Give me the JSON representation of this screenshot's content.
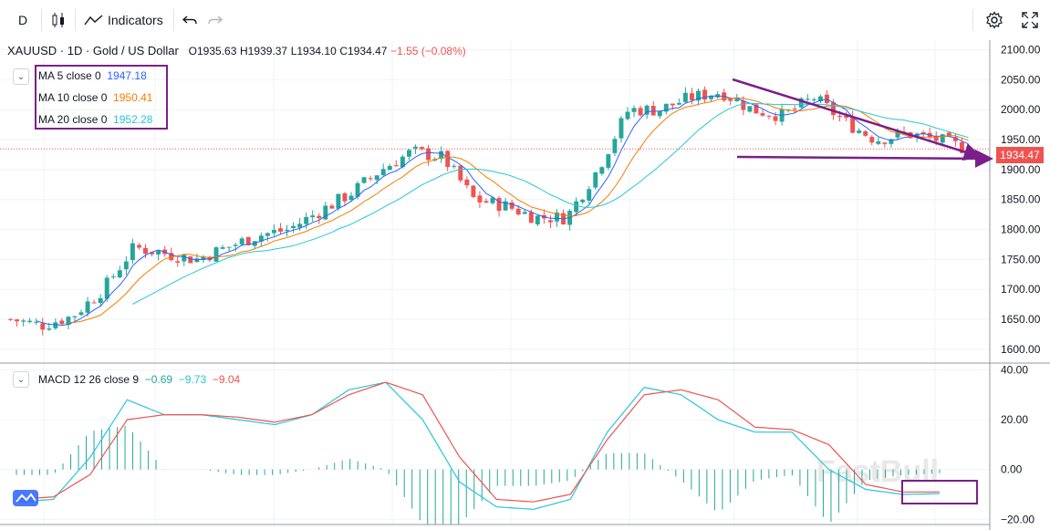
{
  "toolbar": {
    "interval": "D",
    "indicators_label": "Indicators",
    "undo_icon": "undo-icon",
    "redo_icon": "redo-icon",
    "settings_icon": "gear-icon",
    "fullscreen_icon": "fullscreen-icon"
  },
  "legend": {
    "symbol": "XAUUSD · 1D · Gold / US Dollar",
    "open": "O1935.63",
    "high": "H1939.37",
    "low": "L1934.10",
    "close": "C1934.47",
    "change": "−1.55 (−0.08%)"
  },
  "ma": [
    {
      "label": "MA 5 close 0",
      "value": "1947.18",
      "color": "#2962ff"
    },
    {
      "label": "MA 10 close 0",
      "value": "1950.41",
      "color": "#f57c00"
    },
    {
      "label": "MA 20 close 0",
      "value": "1952.28",
      "color": "#26c6da"
    }
  ],
  "macd": {
    "label": "MACD 12 26 close 9",
    "hist": "−0.69",
    "macd": "−9.73",
    "signal": "−9.04"
  },
  "last_price": "1934.47",
  "colors": {
    "up": "#26a69a",
    "down": "#ef5350",
    "annotation": "#7b1f8a"
  },
  "price_axis": [
    "2100.00",
    "2050.00",
    "2000.00",
    "1950.00",
    "1900.00",
    "1850.00",
    "1800.00",
    "1750.00",
    "1700.00",
    "1650.00",
    "1600.00"
  ],
  "macd_axis": [
    "40.00",
    "20.00",
    "0.00",
    "−20.00"
  ],
  "watermark": "FastBull",
  "chart_data": {
    "type": "candlestick",
    "y_range": [
      1580,
      2110
    ],
    "macd_range": [
      -21,
      42
    ],
    "price_trend": [
      1650,
      1640,
      1655,
      1700,
      1770,
      1760,
      1750,
      1770,
      1790,
      1800,
      1830,
      1860,
      1900,
      1930,
      1920,
      1850,
      1840,
      1820,
      1820,
      1900,
      2000,
      2000,
      2020,
      2030,
      2000,
      1990,
      2020,
      1980,
      1950,
      1960,
      1950,
      1934
    ],
    "macd_line": [
      -13,
      -12,
      5,
      28,
      22,
      22,
      20,
      18,
      22,
      32,
      35,
      20,
      -5,
      -15,
      -16,
      -12,
      15,
      33,
      30,
      20,
      15,
      15,
      0,
      -8,
      -10,
      -9.73
    ],
    "signal_line": [
      -12,
      -11,
      -2,
      20,
      22,
      22,
      21,
      19,
      22,
      30,
      35,
      30,
      5,
      -12,
      -13,
      -10,
      12,
      30,
      32,
      28,
      17,
      16,
      10,
      -6,
      -9,
      -9.04
    ]
  }
}
